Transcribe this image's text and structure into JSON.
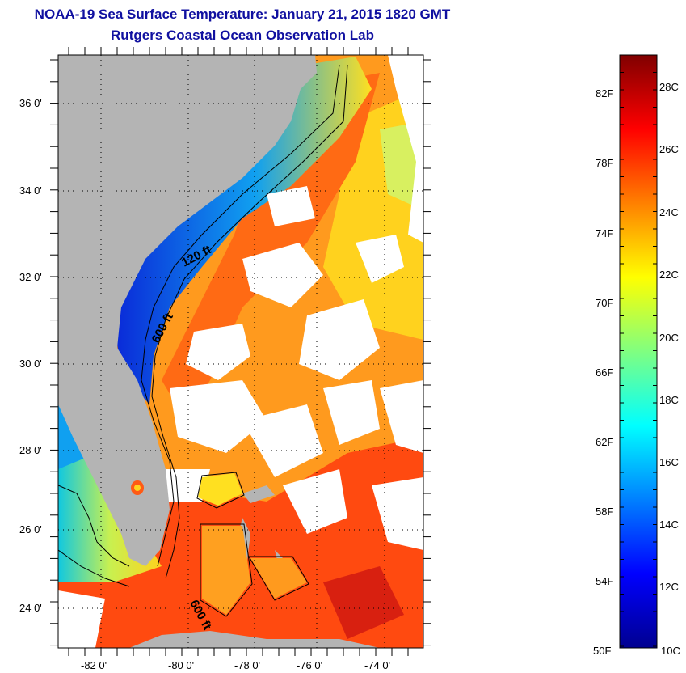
{
  "title": "NOAA-19 Sea Surface Temperature:  January 21, 2015 1820 GMT",
  "subtitle": "Rutgers Coastal Ocean Observation Lab",
  "map": {
    "lat_ticks": [
      "36 0'",
      "34 0'",
      "32 0'",
      "30 0'",
      "28 0'",
      "26 0'",
      "24 0'"
    ],
    "lon_ticks": [
      "-82 0'",
      "-80 0'",
      "-78 0'",
      "-76 0'",
      "-74 0'"
    ],
    "contour_labels": [
      "120 ft",
      "600 ft",
      "600 ft"
    ]
  },
  "colorbar": {
    "fahrenheit_labels": [
      "82F",
      "78F",
      "74F",
      "70F",
      "66F",
      "62F",
      "58F",
      "54F",
      "50F"
    ],
    "celsius_labels": [
      "28C",
      "26C",
      "24C",
      "22C",
      "20C",
      "18C",
      "16C",
      "14C",
      "12C",
      "10C"
    ],
    "colors": [
      "#000090",
      "#0000ff",
      "#0080ff",
      "#00ffff",
      "#80ff80",
      "#ffff00",
      "#ff8000",
      "#ff0000",
      "#800000"
    ]
  },
  "colors": {
    "land": "#b4b4b4",
    "warm_sea": "#ff5a14",
    "orange_sea": "#ff9a1e",
    "yellow_sea": "#ffd21e",
    "cold_coast": "#0a28d8",
    "cloud": "#ffffff",
    "title": "#1010a0"
  }
}
